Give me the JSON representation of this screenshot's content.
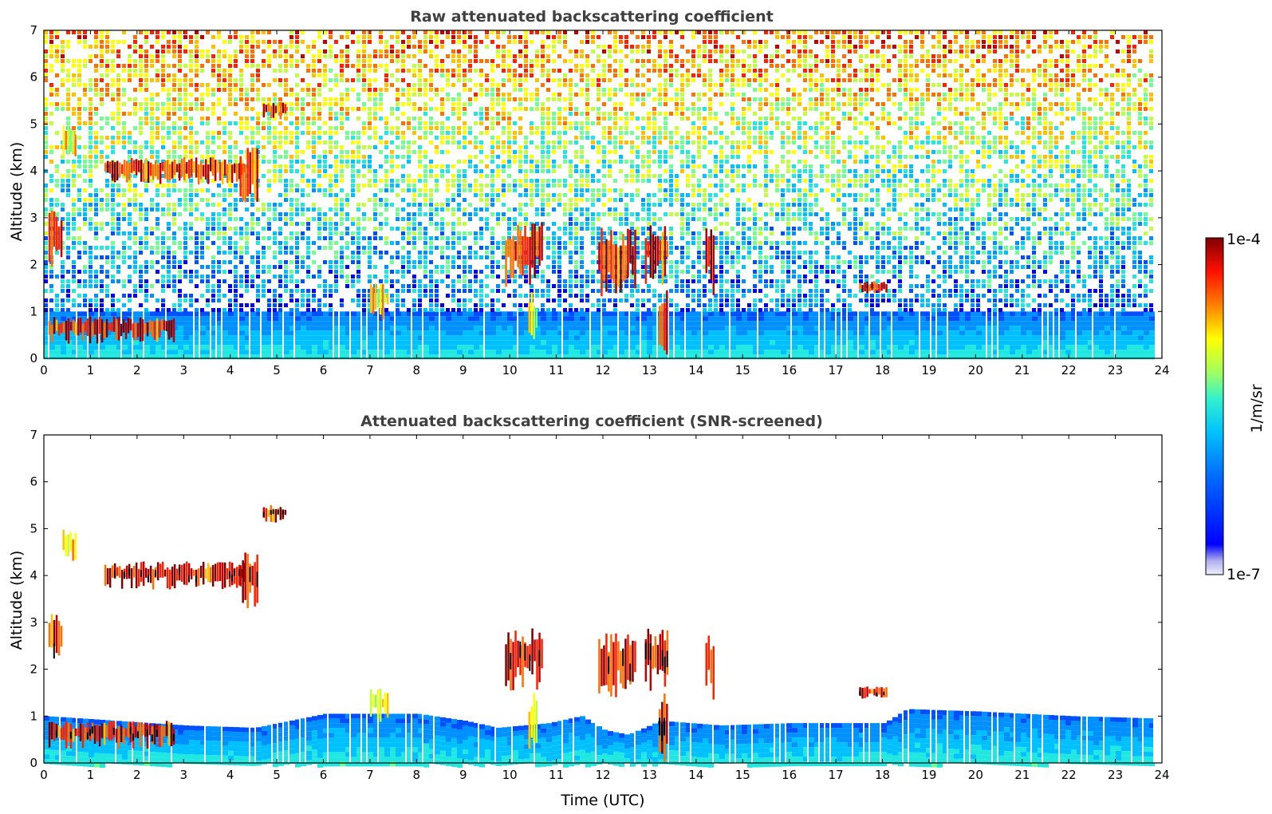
{
  "chart_data": [
    {
      "type": "heatmap",
      "title": "Raw attenuated backscattering coefficient",
      "xlabel": "",
      "ylabel": "Altitude (km)",
      "xlim": [
        0,
        24
      ],
      "ylim": [
        0,
        7
      ],
      "x_ticks": [
        "0",
        "1",
        "2",
        "3",
        "4",
        "5",
        "6",
        "7",
        "8",
        "9",
        "10",
        "11",
        "12",
        "13",
        "14",
        "15",
        "16",
        "17",
        "18",
        "19",
        "20",
        "21",
        "22",
        "23",
        "24"
      ],
      "y_ticks": [
        "0",
        "1",
        "2",
        "3",
        "4",
        "5",
        "6",
        "7"
      ],
      "boundary_layer_top_km": 1.0,
      "features": [
        {
          "time_utc": [
            0.1,
            0.4
          ],
          "altitude_km": [
            1.9,
            3.2
          ],
          "level": "high"
        },
        {
          "time_utc": [
            0.4,
            0.7
          ],
          "altitude_km": [
            4.2,
            5.0
          ],
          "level": "mid"
        },
        {
          "time_utc": [
            1.3,
            4.3
          ],
          "altitude_km": [
            3.7,
            4.3
          ],
          "level": "high"
        },
        {
          "time_utc": [
            4.2,
            4.6
          ],
          "altitude_km": [
            3.2,
            4.5
          ],
          "level": "high"
        },
        {
          "time_utc": [
            4.7,
            5.2
          ],
          "altitude_km": [
            5.1,
            5.5
          ],
          "level": "high"
        },
        {
          "time_utc": [
            0.1,
            2.8
          ],
          "altitude_km": [
            0.3,
            0.9
          ],
          "level": "high"
        },
        {
          "time_utc": [
            9.9,
            10.7
          ],
          "altitude_km": [
            1.5,
            2.9
          ],
          "level": "high"
        },
        {
          "time_utc": [
            10.4,
            10.6
          ],
          "altitude_km": [
            0.0,
            1.5
          ],
          "level": "mid"
        },
        {
          "time_utc": [
            11.9,
            12.7
          ],
          "altitude_km": [
            1.3,
            2.8
          ],
          "level": "high"
        },
        {
          "time_utc": [
            12.9,
            13.4
          ],
          "altitude_km": [
            1.5,
            2.9
          ],
          "level": "high"
        },
        {
          "time_utc": [
            13.2,
            13.4
          ],
          "altitude_km": [
            0.0,
            1.5
          ],
          "level": "high"
        },
        {
          "time_utc": [
            14.2,
            14.4
          ],
          "altitude_km": [
            1.3,
            2.8
          ],
          "level": "high"
        },
        {
          "time_utc": [
            17.5,
            18.1
          ],
          "altitude_km": [
            1.35,
            1.65
          ],
          "level": "high"
        },
        {
          "time_utc": [
            7.0,
            7.4
          ],
          "altitude_km": [
            0.8,
            1.6
          ],
          "level": "mid"
        }
      ]
    },
    {
      "type": "heatmap",
      "title": "Attenuated backscattering coefficient (SNR-screened)",
      "xlabel": "Time (UTC)",
      "ylabel": "Altitude (km)",
      "xlim": [
        0,
        24
      ],
      "ylim": [
        0,
        7
      ],
      "x_ticks": [
        "0",
        "1",
        "2",
        "3",
        "4",
        "5",
        "6",
        "7",
        "8",
        "9",
        "10",
        "11",
        "12",
        "13",
        "14",
        "15",
        "16",
        "17",
        "18",
        "19",
        "20",
        "21",
        "22",
        "23",
        "24"
      ],
      "y_ticks": [
        "0",
        "1",
        "2",
        "3",
        "4",
        "5",
        "6",
        "7"
      ],
      "boundary_layer_top_km": [
        {
          "t": 0,
          "h": 1.0
        },
        {
          "t": 3,
          "h": 0.8
        },
        {
          "t": 4.5,
          "h": 0.75
        },
        {
          "t": 6,
          "h": 1.05
        },
        {
          "t": 8,
          "h": 1.05
        },
        {
          "t": 9,
          "h": 0.9
        },
        {
          "t": 9.7,
          "h": 0.75
        },
        {
          "t": 10.8,
          "h": 0.85
        },
        {
          "t": 11.5,
          "h": 1.0
        },
        {
          "t": 12,
          "h": 0.7
        },
        {
          "t": 12.5,
          "h": 0.6
        },
        {
          "t": 13.2,
          "h": 0.9
        },
        {
          "t": 14.5,
          "h": 0.8
        },
        {
          "t": 16,
          "h": 0.85
        },
        {
          "t": 18,
          "h": 0.85
        },
        {
          "t": 18.5,
          "h": 1.15
        },
        {
          "t": 20,
          "h": 1.1
        },
        {
          "t": 22,
          "h": 1.0
        },
        {
          "t": 23.8,
          "h": 0.95
        }
      ],
      "features": [
        {
          "time_utc": [
            0.1,
            0.4
          ],
          "altitude_km": [
            1.9,
            3.2
          ],
          "level": "high"
        },
        {
          "time_utc": [
            0.4,
            0.7
          ],
          "altitude_km": [
            4.2,
            5.0
          ],
          "level": "mid"
        },
        {
          "time_utc": [
            1.3,
            4.3
          ],
          "altitude_km": [
            3.7,
            4.3
          ],
          "level": "high"
        },
        {
          "time_utc": [
            4.2,
            4.6
          ],
          "altitude_km": [
            3.2,
            4.5
          ],
          "level": "high"
        },
        {
          "time_utc": [
            4.7,
            5.2
          ],
          "altitude_km": [
            5.1,
            5.5
          ],
          "level": "high"
        },
        {
          "time_utc": [
            0.1,
            2.8
          ],
          "altitude_km": [
            0.3,
            0.9
          ],
          "level": "high"
        },
        {
          "time_utc": [
            9.9,
            10.7
          ],
          "altitude_km": [
            1.5,
            2.9
          ],
          "level": "high"
        },
        {
          "time_utc": [
            10.4,
            10.6
          ],
          "altitude_km": [
            0.0,
            1.5
          ],
          "level": "mid"
        },
        {
          "time_utc": [
            11.9,
            12.7
          ],
          "altitude_km": [
            1.3,
            2.8
          ],
          "level": "high"
        },
        {
          "time_utc": [
            12.9,
            13.4
          ],
          "altitude_km": [
            1.5,
            2.9
          ],
          "level": "high"
        },
        {
          "time_utc": [
            13.2,
            13.4
          ],
          "altitude_km": [
            0.0,
            1.5
          ],
          "level": "high"
        },
        {
          "time_utc": [
            14.2,
            14.4
          ],
          "altitude_km": [
            1.3,
            2.8
          ],
          "level": "high"
        },
        {
          "time_utc": [
            17.5,
            18.1
          ],
          "altitude_km": [
            1.35,
            1.65
          ],
          "level": "high"
        },
        {
          "time_utc": [
            7.0,
            7.4
          ],
          "altitude_km": [
            0.8,
            1.6
          ],
          "level": "mid"
        }
      ]
    }
  ],
  "colorbar": {
    "label": "1/m/sr",
    "max_label": "1e-4",
    "min_label": "1e-7",
    "colormap": "jet",
    "scale": "log",
    "colors": [
      "#e6e6f7",
      "#b0b0f0",
      "#0000ff",
      "#0080ff",
      "#00c8ff",
      "#40ffbf",
      "#c0ff40",
      "#ffff00",
      "#ff9000",
      "#ff2000",
      "#a00000",
      "#800000"
    ]
  }
}
